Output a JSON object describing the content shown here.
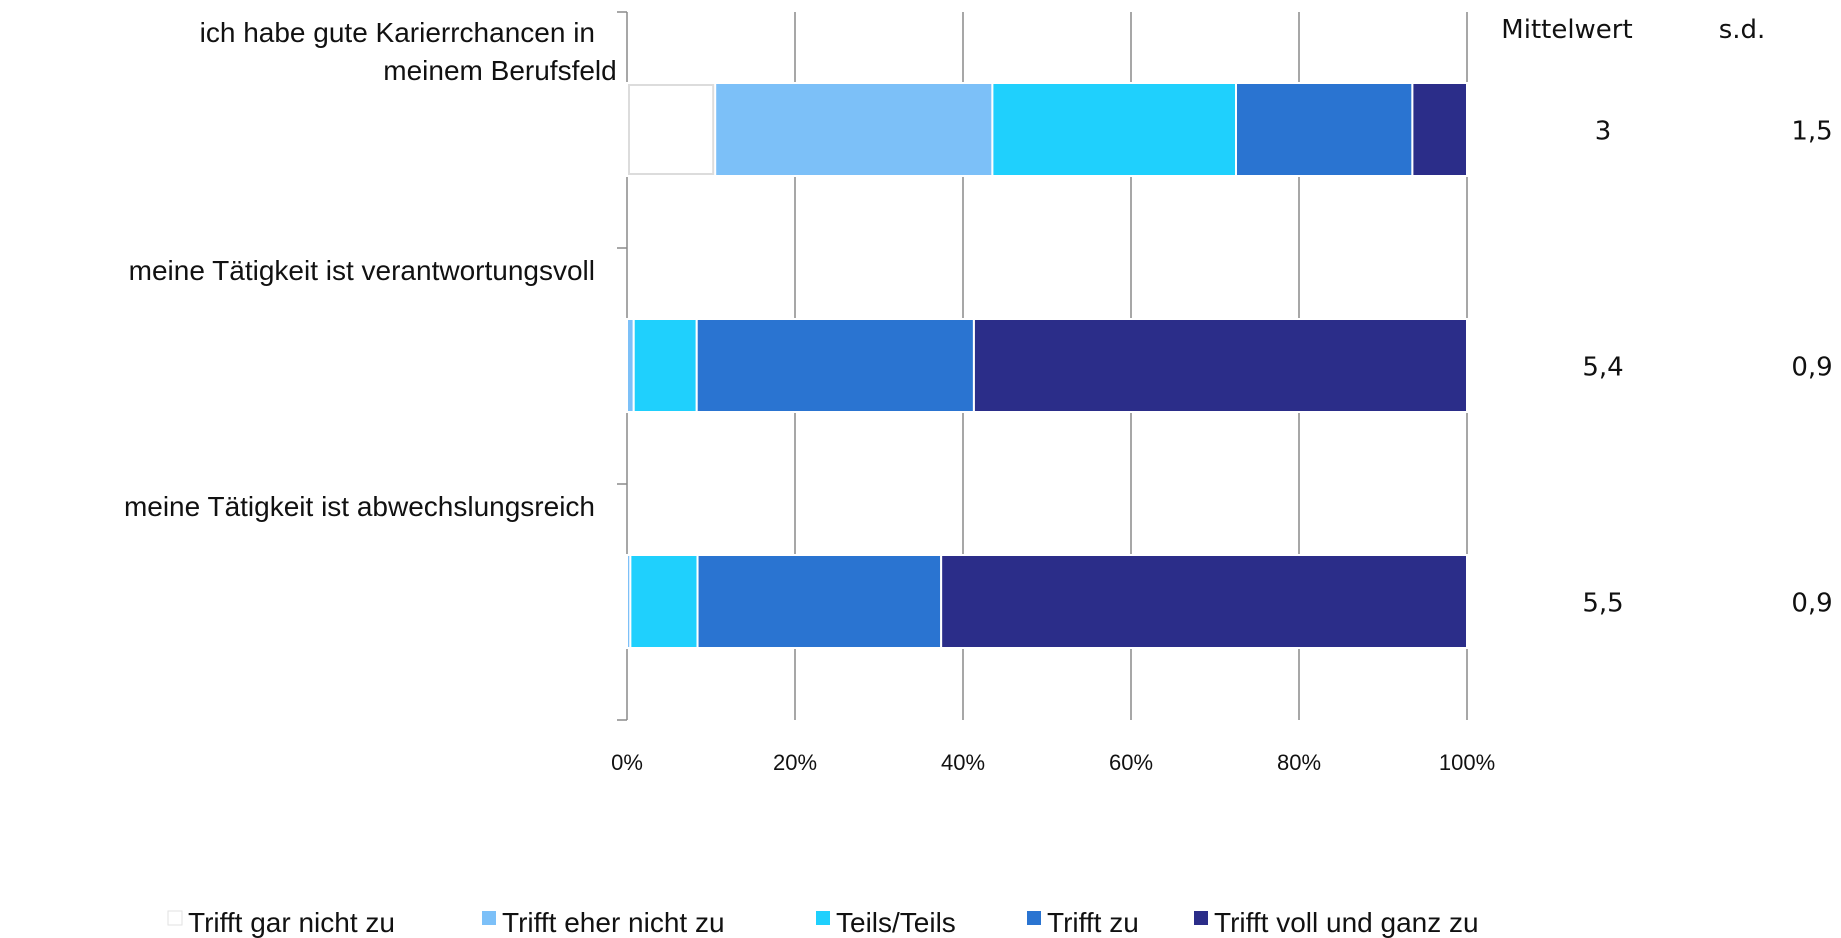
{
  "chart_data": {
    "type": "bar",
    "orientation": "horizontal",
    "stacked": "percent",
    "categories": [
      [
        "ich habe gute Karierrchancen  in",
        "meinem Berufsfeld"
      ],
      [
        "meine Tätigkeit ist verantwortungsvoll"
      ],
      [
        "meine Tätigkeit ist abwechslungsreich"
      ]
    ],
    "series": [
      {
        "name": "Trifft gar nicht zu",
        "color": "#ffffff",
        "values": [
          10.5,
          0,
          0
        ]
      },
      {
        "name": "Trifft eher nicht zu",
        "color": "#7cc0f8",
        "values": [
          33,
          0.8,
          0.4
        ]
      },
      {
        "name": "Teils/Teils",
        "color": "#1fd0fd",
        "values": [
          29,
          7.5,
          8
        ]
      },
      {
        "name": "Trifft zu",
        "color": "#2a74d1",
        "values": [
          21,
          33,
          29
        ]
      },
      {
        "name": "Trifft voll und ganz zu",
        "color": "#2b2d89",
        "values": [
          6.5,
          58.7,
          62.6
        ]
      }
    ],
    "xlim": [
      0,
      100
    ],
    "x_ticks": [
      "0%",
      "20%",
      "40%",
      "60%",
      "80%",
      "100%"
    ],
    "grid": true,
    "legend_position": "bottom",
    "stats_table": {
      "headers": [
        "Mittelwert",
        "s.d."
      ],
      "rows": [
        [
          "3",
          "1,5"
        ],
        [
          "5,4",
          "0,9"
        ],
        [
          "5,5",
          "0,9"
        ]
      ]
    }
  }
}
